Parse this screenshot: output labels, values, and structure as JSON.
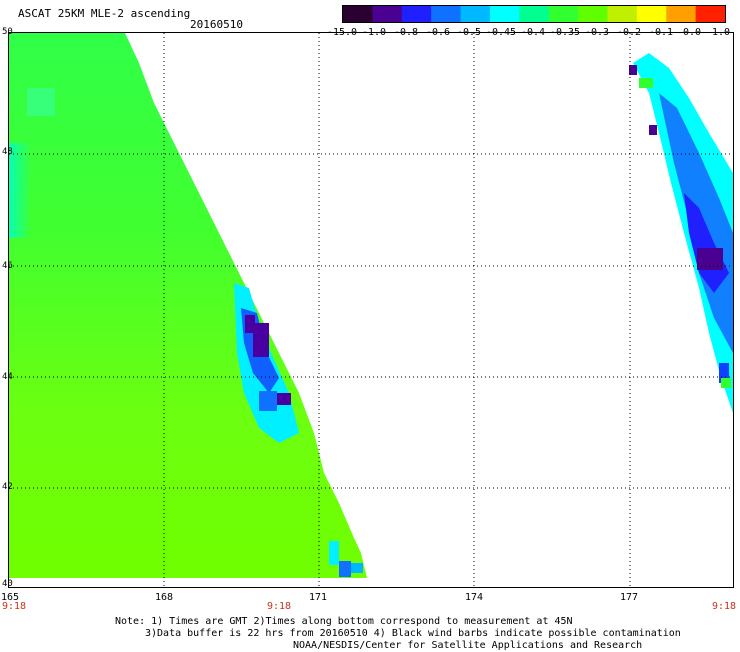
{
  "title": "ASCAT 25KM MLE-2 ascending",
  "date": "20160510",
  "colorbar": {
    "ticks": [
      "-15.0",
      "-1.0",
      "-0.8",
      "-0.6",
      "-0.5",
      "-0.45",
      "-0.4",
      "-0.35",
      "-0.3",
      "-0.2",
      "-0.1",
      "0.0",
      "1.0"
    ],
    "colors": [
      "#2a0030",
      "#4a0090",
      "#2020ff",
      "#1070ff",
      "#00b8ff",
      "#00ffff",
      "#00ff90",
      "#30ff30",
      "#60ff00",
      "#c0f000",
      "#ffff00",
      "#ffa000",
      "#ff2000"
    ]
  },
  "map": {
    "lat_labels": [
      "50",
      "48",
      "46",
      "44",
      "42",
      "40"
    ],
    "lon_labels": [
      "165",
      "168",
      "171",
      "174",
      "177"
    ],
    "time_labels": [
      "9:18",
      "9:18",
      "9:18"
    ]
  },
  "notes": [
    "Note: 1) Times are GMT 2)Times along bottom correspond to measurement at 45N",
    "3)Data buffer is 22 hrs from 20160510 4) Black wind barbs indicate possible contamination",
    "NOAA/NESDIS/Center for Satellite Applications and Research"
  ]
}
